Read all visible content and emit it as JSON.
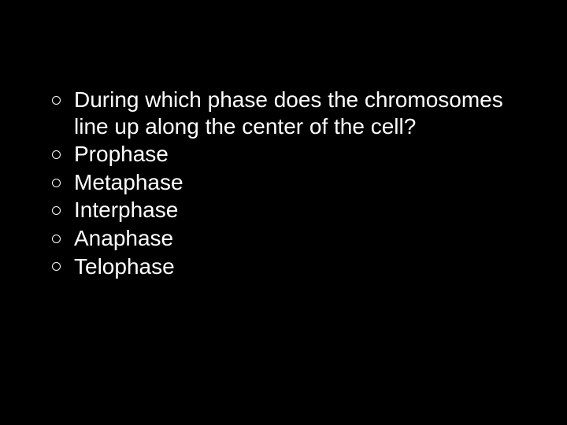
{
  "slide": {
    "background_color": "#000000",
    "text_color": "#ffffff",
    "font_family": "Arial",
    "font_size_pt": 28,
    "bullet_style": "round",
    "bullet_outline_color": "#ffffff",
    "bullet_fill_color": "#000000",
    "items": [
      {
        "text": "During which phase does the chromosomes line up along the center of the cell?"
      },
      {
        "text": "Prophase"
      },
      {
        "text": "Metaphase"
      },
      {
        "text": "Interphase"
      },
      {
        "text": "Anaphase"
      },
      {
        "text": "Telophase"
      }
    ]
  }
}
